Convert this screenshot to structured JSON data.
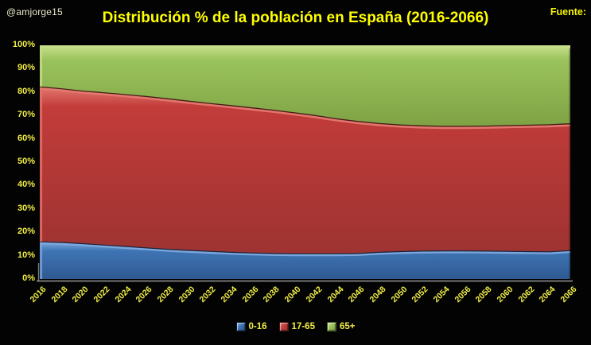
{
  "header": {
    "watermark": "@amjorge15",
    "title": "Distribución % de la población en España (2016-2066)",
    "source_label": "Fuente:"
  },
  "colors": {
    "background": "#030303",
    "title_text": "#ffff00",
    "axis_text": "#f1ee45",
    "watermark_text": "#e9e9c8",
    "axis_line": "#9a9a9a",
    "series_blue": {
      "base": "#3e74b4",
      "light": "#7fa9dd",
      "dark": "#2f5a92",
      "edge_dark": "#121e33"
    },
    "series_red": {
      "base": "#c23c3a",
      "light": "#e4796f",
      "dark": "#9e3331",
      "edge_dark": "#3a1713"
    },
    "series_green": {
      "base": "#9ac35c",
      "light": "#c9e08c",
      "dark": "#7fa244",
      "edge_dark": "#465c22"
    }
  },
  "chart_data": {
    "type": "area",
    "stacked": true,
    "title": "Distribución % de la población en España (2016-2066)",
    "xlabel": "",
    "ylabel": "",
    "ylim": [
      0,
      100
    ],
    "ytick_step": 10,
    "grid": false,
    "legend_position": "bottom",
    "x": [
      2016,
      2018,
      2020,
      2022,
      2024,
      2026,
      2028,
      2030,
      2032,
      2034,
      2036,
      2038,
      2040,
      2042,
      2044,
      2046,
      2048,
      2050,
      2052,
      2054,
      2056,
      2058,
      2060,
      2062,
      2064,
      2066
    ],
    "ytick_labels": [
      "0%",
      "10%",
      "20%",
      "30%",
      "40%",
      "50%",
      "60%",
      "70%",
      "80%",
      "90%",
      "100%"
    ],
    "series": [
      {
        "name": "0-16",
        "color": "#3e74b4",
        "values": [
          16.0,
          15.7,
          15.2,
          14.6,
          14.0,
          13.4,
          12.8,
          12.3,
          11.9,
          11.5,
          11.2,
          11.0,
          10.9,
          10.9,
          10.9,
          11.0,
          11.5,
          11.8,
          12.0,
          12.1,
          12.1,
          12.0,
          11.9,
          11.8,
          11.7,
          12.2
        ]
      },
      {
        "name": "17-65",
        "color": "#c23c3a",
        "values": [
          66.3,
          65.8,
          65.3,
          65.2,
          65.0,
          64.8,
          64.4,
          63.9,
          63.3,
          62.8,
          62.1,
          61.3,
          60.3,
          59.1,
          57.7,
          56.5,
          55.1,
          54.2,
          53.6,
          53.3,
          53.3,
          53.5,
          53.8,
          54.1,
          54.4,
          54.3
        ]
      },
      {
        "name": "65+",
        "color": "#9ac35c",
        "values": [
          17.7,
          18.5,
          19.5,
          20.2,
          21.0,
          21.8,
          22.8,
          23.8,
          24.8,
          25.7,
          26.7,
          27.7,
          28.8,
          30.0,
          31.4,
          32.5,
          33.4,
          34.0,
          34.4,
          34.6,
          34.6,
          34.5,
          34.3,
          34.1,
          33.9,
          33.5
        ]
      }
    ]
  }
}
